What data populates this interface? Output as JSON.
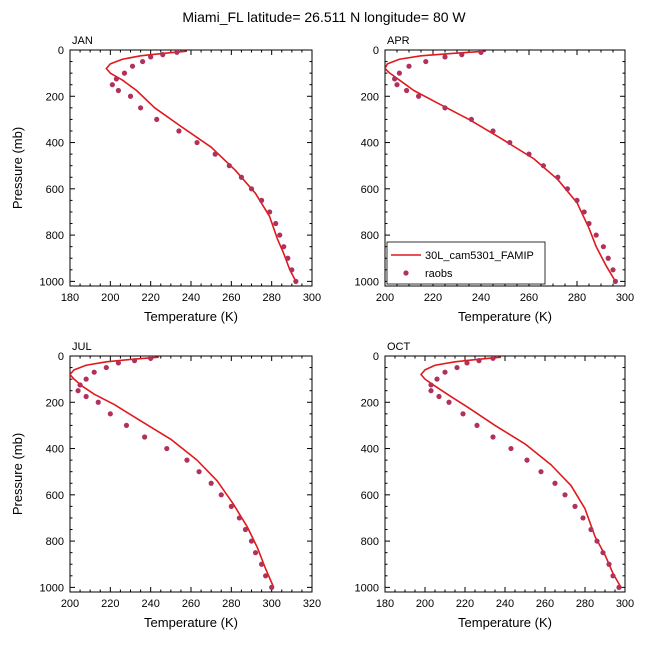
{
  "title": "Miami_FL  latitude= 26.511 N longitude= 80 W",
  "colors": {
    "model_line": "#e0191c",
    "obs_marker": "#b0325a",
    "axis": "#000000"
  },
  "legend": {
    "model": "30L_cam5301_FAMIP",
    "obs": "raobs"
  },
  "chart_data": [
    {
      "type": "line",
      "panel": "JAN",
      "xlabel": "Temperature (K)",
      "ylabel": "Pressure (mb)",
      "xlim": [
        180,
        300
      ],
      "ylim": [
        0,
        1020
      ],
      "x_ticks": [
        180,
        200,
        220,
        240,
        260,
        280,
        300
      ],
      "y_ticks": [
        0,
        200,
        400,
        600,
        800,
        1000
      ],
      "series": [
        {
          "name": "30L_cam5301_FAMIP",
          "kind": "line",
          "temperature": [
            238,
            226,
            215,
            206,
            200,
            198,
            200,
            206,
            213,
            222,
            235,
            250,
            262,
            272,
            279,
            283,
            286,
            289,
            292
          ],
          "pressure": [
            5,
            15,
            25,
            40,
            60,
            80,
            100,
            130,
            175,
            250,
            330,
            420,
            520,
            620,
            720,
            820,
            880,
            950,
            1000
          ]
        },
        {
          "name": "raobs",
          "kind": "scatter",
          "temperature": [
            233,
            226,
            220,
            216,
            211,
            207,
            203,
            201,
            204,
            210,
            215,
            223,
            234,
            243,
            252,
            259,
            265,
            270,
            275,
            279,
            282,
            284,
            286,
            288,
            290,
            292
          ],
          "pressure": [
            10,
            20,
            30,
            50,
            70,
            100,
            125,
            150,
            175,
            200,
            250,
            300,
            350,
            400,
            450,
            500,
            550,
            600,
            650,
            700,
            750,
            800,
            850,
            900,
            950,
            1000
          ]
        }
      ]
    },
    {
      "type": "line",
      "panel": "APR",
      "xlabel": "Temperature (K)",
      "ylabel": "Pressure (mb)",
      "xlim": [
        200,
        300
      ],
      "ylim": [
        0,
        1020
      ],
      "x_ticks": [
        200,
        220,
        240,
        260,
        280,
        300
      ],
      "y_ticks": [
        0,
        200,
        400,
        600,
        800,
        1000
      ],
      "series": [
        {
          "name": "30L_cam5301_FAMIP",
          "kind": "line",
          "temperature": [
            242,
            228,
            215,
            206,
            201,
            200,
            202,
            206,
            212,
            222,
            235,
            248,
            262,
            272,
            280,
            285,
            288,
            292,
            296
          ],
          "pressure": [
            5,
            15,
            25,
            40,
            60,
            80,
            100,
            130,
            175,
            230,
            300,
            380,
            470,
            560,
            660,
            770,
            850,
            930,
            1000
          ]
        },
        {
          "name": "raobs",
          "kind": "scatter",
          "temperature": [
            240,
            232,
            225,
            217,
            210,
            206,
            204,
            205,
            209,
            214,
            225,
            236,
            245,
            252,
            260,
            266,
            272,
            276,
            280,
            283,
            285,
            288,
            291,
            293,
            295,
            296
          ],
          "pressure": [
            10,
            20,
            30,
            50,
            70,
            100,
            125,
            150,
            175,
            200,
            250,
            300,
            350,
            400,
            450,
            500,
            550,
            600,
            650,
            700,
            750,
            800,
            850,
            900,
            950,
            1000
          ]
        }
      ]
    },
    {
      "type": "line",
      "panel": "JUL",
      "xlabel": "Temperature (K)",
      "ylabel": "Pressure (mb)",
      "xlim": [
        200,
        320
      ],
      "ylim": [
        0,
        1020
      ],
      "x_ticks": [
        200,
        220,
        240,
        260,
        280,
        300,
        320
      ],
      "y_ticks": [
        0,
        200,
        400,
        600,
        800,
        1000
      ],
      "series": [
        {
          "name": "30L_cam5301_FAMIP",
          "kind": "line",
          "temperature": [
            244,
            230,
            218,
            208,
            202,
            200,
            202,
            206,
            212,
            222,
            235,
            250,
            263,
            273,
            281,
            288,
            293,
            297,
            301
          ],
          "pressure": [
            5,
            15,
            25,
            40,
            60,
            80,
            100,
            130,
            165,
            210,
            280,
            360,
            450,
            540,
            640,
            740,
            830,
            920,
            1000
          ]
        },
        {
          "name": "raobs",
          "kind": "scatter",
          "temperature": [
            240,
            232,
            224,
            218,
            212,
            208,
            205,
            204,
            208,
            214,
            220,
            228,
            237,
            248,
            258,
            264,
            270,
            275,
            280,
            284,
            287,
            290,
            292,
            295,
            297,
            300
          ],
          "pressure": [
            10,
            20,
            30,
            50,
            70,
            100,
            125,
            150,
            175,
            200,
            250,
            300,
            350,
            400,
            450,
            500,
            550,
            600,
            650,
            700,
            750,
            800,
            850,
            900,
            950,
            1000
          ]
        }
      ]
    },
    {
      "type": "line",
      "panel": "OCT",
      "xlabel": "Temperature (K)",
      "ylabel": "Pressure (mb)",
      "xlim": [
        180,
        300
      ],
      "ylim": [
        0,
        1020
      ],
      "x_ticks": [
        180,
        200,
        220,
        240,
        260,
        280,
        300
      ],
      "y_ticks": [
        0,
        200,
        400,
        600,
        800,
        1000
      ],
      "series": [
        {
          "name": "30L_cam5301_FAMIP",
          "kind": "line",
          "temperature": [
            238,
            226,
            215,
            205,
            200,
            198,
            200,
            205,
            212,
            222,
            235,
            250,
            263,
            273,
            280,
            285,
            290,
            294,
            298
          ],
          "pressure": [
            5,
            15,
            25,
            40,
            60,
            80,
            100,
            130,
            170,
            225,
            300,
            380,
            470,
            560,
            660,
            780,
            860,
            940,
            1000
          ]
        },
        {
          "name": "raobs",
          "kind": "scatter",
          "temperature": [
            234,
            227,
            221,
            216,
            210,
            206,
            203,
            203,
            207,
            212,
            219,
            226,
            234,
            243,
            251,
            258,
            265,
            270,
            275,
            279,
            283,
            286,
            289,
            292,
            294,
            297
          ],
          "pressure": [
            10,
            20,
            30,
            50,
            70,
            100,
            125,
            150,
            175,
            200,
            250,
            300,
            350,
            400,
            450,
            500,
            550,
            600,
            650,
            700,
            750,
            800,
            850,
            900,
            950,
            1000
          ]
        }
      ]
    }
  ]
}
